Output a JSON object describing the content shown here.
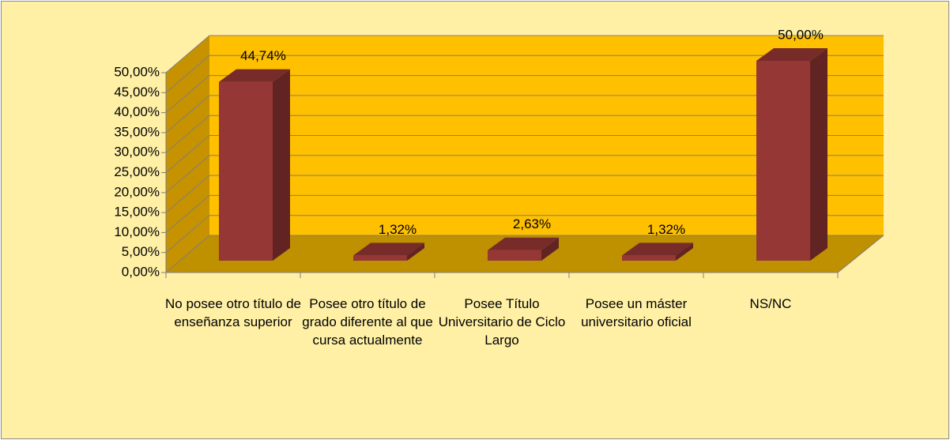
{
  "chart_data": {
    "type": "bar3d",
    "categories": [
      "No posee otro título de enseñanza superior",
      "Posee otro título de grado diferente al que cursa actualmente",
      "Posee Título Universitario de Ciclo Largo",
      "Posee un máster universitario oficial",
      "NS/NC"
    ],
    "values": [
      44.74,
      1.32,
      2.63,
      1.32,
      50.0
    ],
    "value_labels": [
      "44,74%",
      "1,32%",
      "2,63%",
      "1,32%",
      "50,00%"
    ],
    "color": "#953735",
    "ylim": [
      0,
      50
    ],
    "yticks": [
      {
        "value": 0,
        "label": "0,00%"
      },
      {
        "value": 5,
        "label": "5,00%"
      },
      {
        "value": 10,
        "label": "10,00%"
      },
      {
        "value": 15,
        "label": "15,00%"
      },
      {
        "value": 20,
        "label": "20,00%"
      },
      {
        "value": 25,
        "label": "25,00%"
      },
      {
        "value": 30,
        "label": "30,00%"
      },
      {
        "value": 35,
        "label": "35,00%"
      },
      {
        "value": 40,
        "label": "40,00%"
      },
      {
        "value": 45,
        "label": "45,00%"
      },
      {
        "value": 50,
        "label": "50,00%"
      }
    ],
    "grid": true
  }
}
